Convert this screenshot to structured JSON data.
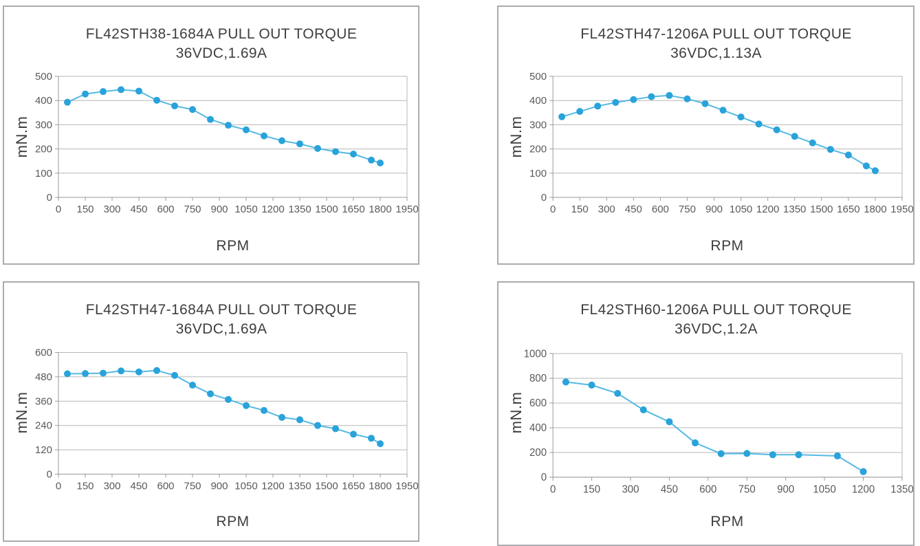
{
  "palette": {
    "line": "#55B9E3",
    "marker": "#29A3DA",
    "grid": "#b7b7b7",
    "axis": "#9a9a9a",
    "tick_text": "#595959",
    "title_text": "#3e3e3e",
    "panel_border": "#a9abae"
  },
  "chart_data": [
    {
      "type": "line",
      "title": "FL42STH38-1684A PULL OUT TORQUE",
      "subtitle": "36VDC,1.69A",
      "xlabel": "RPM",
      "ylabel": "mN.m",
      "xlim": [
        0,
        1950
      ],
      "xtick_step": 150,
      "ylim": [
        0,
        500
      ],
      "ytick_step": 100,
      "grid": true,
      "legend": "none",
      "x": [
        50,
        150,
        250,
        350,
        450,
        550,
        650,
        750,
        850,
        950,
        1050,
        1150,
        1250,
        1350,
        1450,
        1550,
        1650,
        1750,
        1800
      ],
      "y": [
        393,
        427,
        437,
        445,
        439,
        401,
        378,
        363,
        322,
        298,
        279,
        254,
        234,
        221,
        202,
        189,
        179,
        154,
        142
      ]
    },
    {
      "type": "line",
      "title": "FL42STH47-1206A PULL OUT TORQUE",
      "subtitle": "36VDC,1.13A",
      "xlabel": "RPM",
      "ylabel": "mN.m",
      "xlim": [
        0,
        1950
      ],
      "xtick_step": 150,
      "ylim": [
        0,
        500
      ],
      "ytick_step": 100,
      "grid": true,
      "legend": "none",
      "x": [
        50,
        150,
        250,
        350,
        450,
        550,
        650,
        750,
        850,
        950,
        1050,
        1150,
        1250,
        1350,
        1450,
        1550,
        1650,
        1750,
        1800
      ],
      "y": [
        333,
        355,
        377,
        392,
        404,
        416,
        421,
        407,
        387,
        360,
        332,
        303,
        279,
        252,
        225,
        198,
        175,
        130,
        110
      ]
    },
    {
      "type": "line",
      "title": "FL42STH47-1684A PULL OUT TORQUE",
      "subtitle": "36VDC,1.69A",
      "xlabel": "RPM",
      "ylabel": "mN.m",
      "xlim": [
        0,
        1950
      ],
      "xtick_step": 150,
      "ylim": [
        0,
        600
      ],
      "ytick_step": 120,
      "grid": true,
      "legend": "none",
      "x": [
        50,
        150,
        250,
        350,
        450,
        550,
        650,
        750,
        850,
        950,
        1050,
        1150,
        1250,
        1350,
        1450,
        1550,
        1650,
        1750,
        1800
      ],
      "y": [
        495,
        496,
        498,
        509,
        504,
        511,
        487,
        439,
        396,
        368,
        338,
        314,
        280,
        268,
        240,
        224,
        197,
        177,
        150
      ]
    },
    {
      "type": "line",
      "title": "FL42STH60-1206A PULL OUT TORQUE",
      "subtitle": "36VDC,1.2A",
      "xlabel": "RPM",
      "ylabel": "mN.m",
      "xlim": [
        0,
        1350
      ],
      "xtick_step": 150,
      "ylim": [
        0,
        1000
      ],
      "ytick_step": 200,
      "grid": true,
      "legend": "none",
      "x": [
        50,
        150,
        250,
        350,
        450,
        550,
        650,
        750,
        850,
        950,
        1100,
        1200
      ],
      "y": [
        770,
        745,
        678,
        545,
        448,
        278,
        190,
        192,
        182,
        182,
        172,
        45
      ]
    }
  ]
}
